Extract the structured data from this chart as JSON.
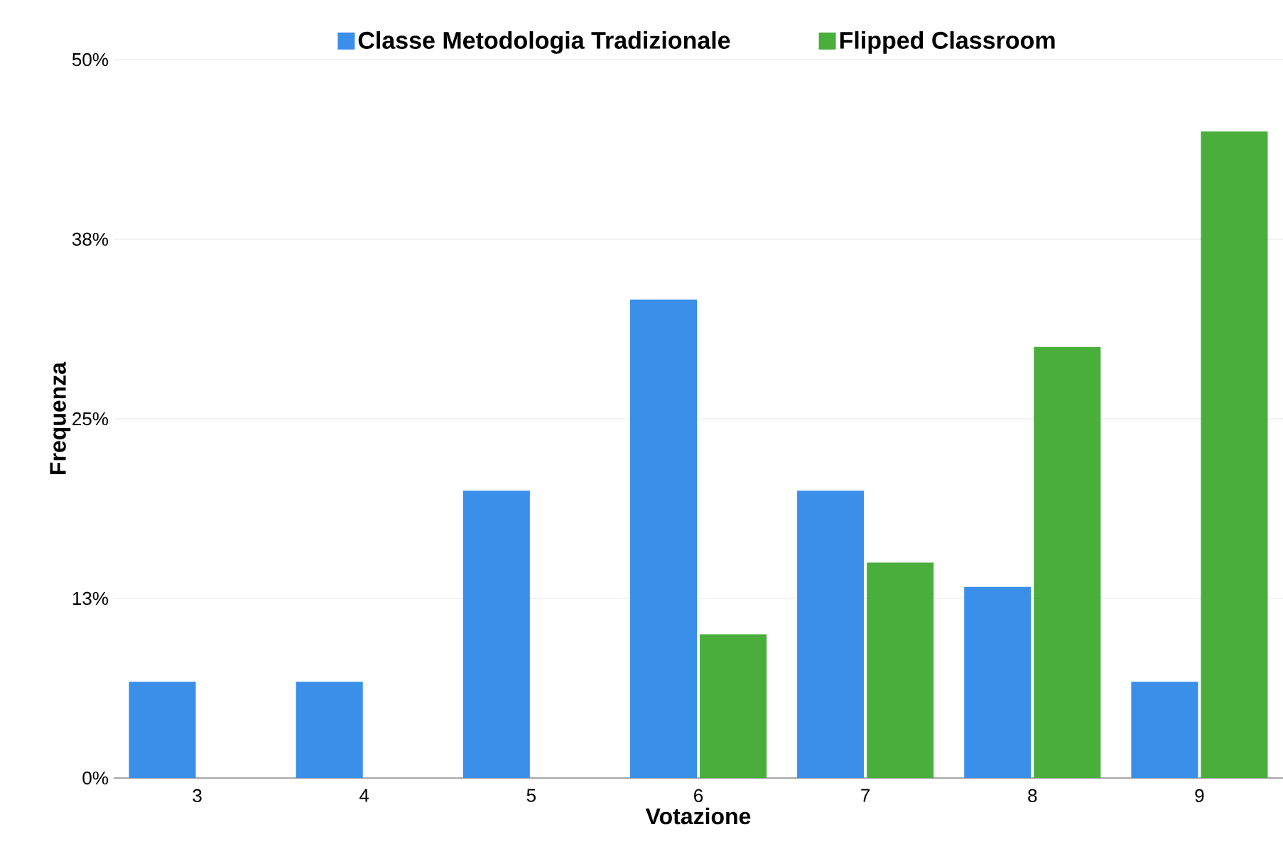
{
  "chart_data": {
    "type": "bar",
    "categories": [
      "3",
      "4",
      "5",
      "6",
      "7",
      "8",
      "9"
    ],
    "series": [
      {
        "name": "Classe Metodologia Tradizionale",
        "color": "#3a8fe8",
        "values": [
          6.7,
          6.7,
          20.0,
          33.3,
          20.0,
          13.3,
          6.7
        ]
      },
      {
        "name": "Flipped Classroom",
        "color": "#4aae3c",
        "values": [
          null,
          null,
          null,
          10.0,
          15.0,
          30.0,
          45.0
        ]
      }
    ],
    "xlabel": "Votazione",
    "ylabel": "Frequenza",
    "ylim": [
      0,
      50
    ],
    "yticks": [
      {
        "value": 0,
        "label": "0%"
      },
      {
        "value": 12.5,
        "label": "13%"
      },
      {
        "value": 25,
        "label": "25%"
      },
      {
        "value": 37.5,
        "label": "38%"
      },
      {
        "value": 50,
        "label": "50%"
      }
    ],
    "grid": "y",
    "legend": "top"
  }
}
